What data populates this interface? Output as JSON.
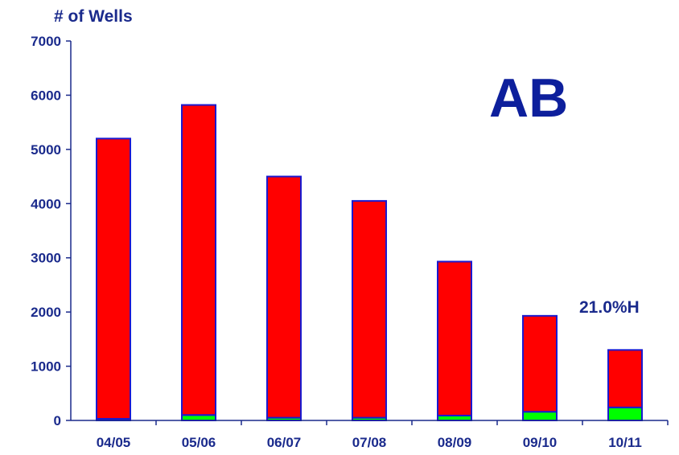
{
  "chart_data": {
    "type": "bar",
    "stacked": true,
    "ylabel": "# of Wells",
    "categories": [
      "04/05",
      "05/06",
      "06/07",
      "07/08",
      "08/09",
      "09/10",
      "10/11"
    ],
    "series": [
      {
        "values": [
          30,
          100,
          50,
          50,
          90,
          160,
          240
        ],
        "color": "#00ff00"
      },
      {
        "values": [
          5170,
          5720,
          4450,
          4000,
          2840,
          1770,
          1060
        ],
        "color": "#ff0000"
      }
    ],
    "ylim": [
      0,
      7000
    ],
    "yticks": [
      "0",
      "1000",
      "2000",
      "3000",
      "4000",
      "5000",
      "6000",
      "7000"
    ],
    "ytick_values": [
      0,
      1000,
      2000,
      3000,
      4000,
      5000,
      6000,
      7000
    ],
    "grid": false,
    "annotations": [
      {
        "id": "province",
        "text": "AB"
      },
      {
        "id": "percent",
        "text": "21.0%H"
      }
    ],
    "colors": {
      "axis": "#1a2a8c",
      "bar_border": "#1a1ad0",
      "text": "#1a2a8c"
    }
  }
}
